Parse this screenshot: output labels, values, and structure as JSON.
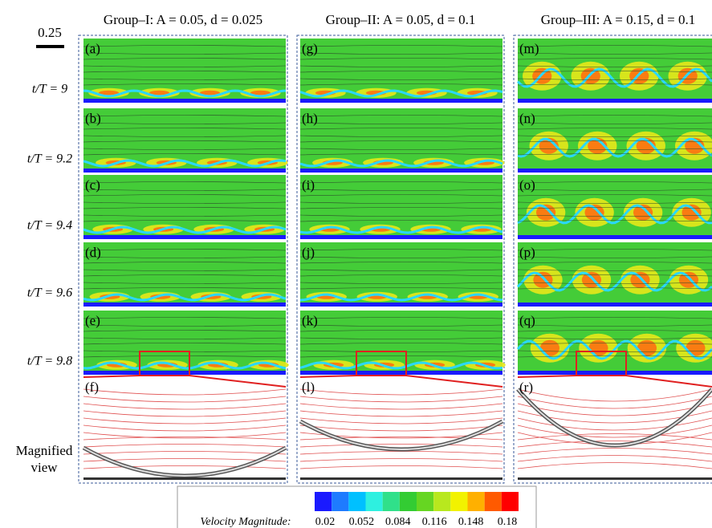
{
  "scale_bar": "0.25",
  "magnified_label": [
    "Magnified",
    "view"
  ],
  "row_labels": [
    "t/T = 9",
    "t/T = 9.2",
    "t/T = 9.4",
    "t/T = 9.6",
    "t/T = 9.8"
  ],
  "groups": [
    {
      "title": "Group–I: A = 0.05,  d = 0.025",
      "panels": [
        "(a)",
        "(b)",
        "(c)",
        "(d)",
        "(e)"
      ],
      "magnified": "(f)"
    },
    {
      "title": "Group–II: A = 0.05,  d = 0.1",
      "panels": [
        "(g)",
        "(h)",
        "(i)",
        "(j)",
        "(k)"
      ],
      "magnified": "(l)"
    },
    {
      "title": "Group–III: A = 0.15,  d = 0.1",
      "panels": [
        "(m)",
        "(n)",
        "(o)",
        "(p)",
        "(q)"
      ],
      "magnified": "(r)"
    }
  ],
  "colorbar": {
    "label": "Velocity Magnitude:",
    "ticks": [
      0.02,
      0.052,
      0.084,
      0.116,
      0.148,
      0.18
    ],
    "colors": [
      "#1a1aff",
      "#1e7bff",
      "#00c0ff",
      "#2ef0e0",
      "#30e08a",
      "#33cc33",
      "#66d622",
      "#b8e81e",
      "#f2f200",
      "#ffb000",
      "#ff5a00",
      "#ff0000"
    ]
  }
}
